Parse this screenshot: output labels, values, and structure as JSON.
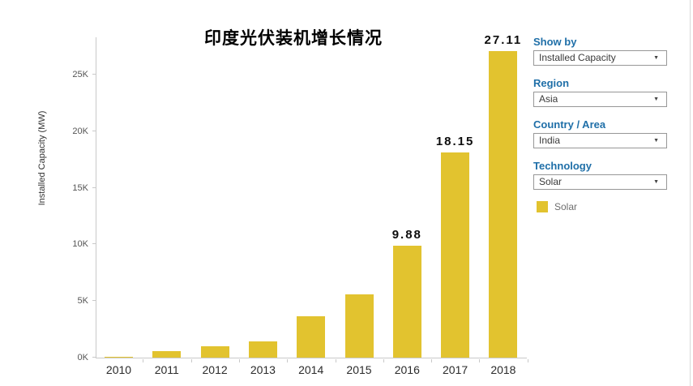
{
  "chart_data": {
    "type": "bar",
    "title": "印度光伏装机增长情况",
    "ylabel": "Installed Capacity (MW)",
    "xlabel": "",
    "categories": [
      "2010",
      "2011",
      "2012",
      "2013",
      "2014",
      "2015",
      "2016",
      "2017",
      "2018"
    ],
    "values": [
      0.07,
      0.57,
      0.98,
      1.45,
      3.62,
      5.59,
      9.88,
      18.15,
      27.11
    ],
    "value_unit": "thousand MW (K)",
    "bar_labels": [
      "",
      "",
      "",
      "",
      "",
      "",
      "9.88",
      "18.15",
      "27.11"
    ],
    "y_tick_labels": [
      "0K",
      "5K",
      "10K",
      "15K",
      "20K",
      "25K"
    ],
    "y_tick_values": [
      0,
      5,
      10,
      15,
      20,
      25
    ],
    "ylim": [
      0,
      28.4
    ],
    "grid": false,
    "legend_position": "right",
    "series_name": "Solar",
    "bar_color": "#e2c32f"
  },
  "sidebar": {
    "filters": [
      {
        "label": "Show by",
        "value": "Installed Capacity"
      },
      {
        "label": "Region",
        "value": "Asia"
      },
      {
        "label": "Country / Area",
        "value": "India"
      },
      {
        "label": "Technology",
        "value": "Solar"
      }
    ],
    "caret_icon": "▼",
    "legend": {
      "label": "Solar",
      "color": "#e2c32f"
    }
  },
  "colors": {
    "bar": "#e2c32f",
    "filter_label_blue": "#1f6fa8",
    "axis_line": "#c9c9c9",
    "y_tick_text": "#555555",
    "year_text": "#2b2b2b",
    "value_label_text": "#0d0d0d",
    "legend_text": "#6e6e6e",
    "dropdown_border": "#979797"
  }
}
